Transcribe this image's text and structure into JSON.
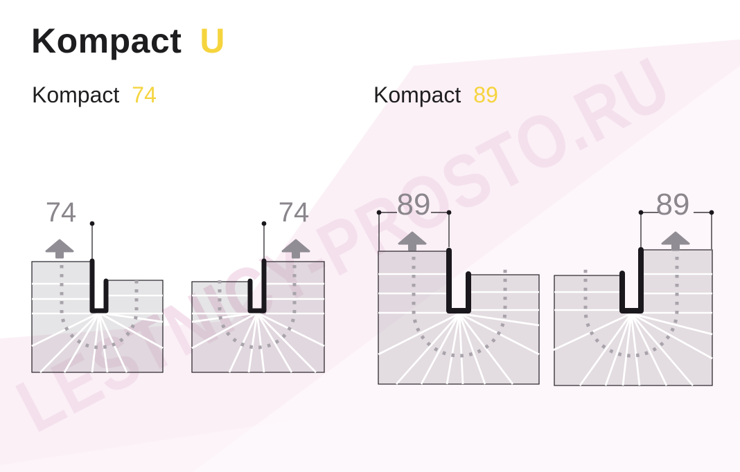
{
  "title": {
    "main": "Kompact",
    "accent": "U"
  },
  "sections": [
    {
      "label": "Kompact",
      "value": "74"
    },
    {
      "label": "Kompact",
      "value": "89"
    }
  ],
  "watermark": "LESTNICY-PROSTO.RU",
  "diagrams": [
    {
      "id": "kompact-74-left",
      "label": "74"
    },
    {
      "id": "kompact-74-right",
      "label": "74"
    },
    {
      "id": "kompact-89-left",
      "label": "89"
    },
    {
      "id": "kompact-89-right",
      "label": "89"
    }
  ],
  "colors": {
    "accent_yellow": "#f5d43e",
    "dim_label_gray": "#8a868c",
    "plan_fill": "rgba(95,90,100,0.16)",
    "plan_outline": "#2e2b30",
    "step_line_white": "#ffffff",
    "profile_black": "#1b181d",
    "dotted_path_gray": "#a8a3aa",
    "arrow_gray": "#918d94",
    "dim_line": "#39363b",
    "watermark_pink": "#f4e0ec",
    "bg_pink": "#fbf0f6",
    "bg_white": "#ffffff"
  }
}
